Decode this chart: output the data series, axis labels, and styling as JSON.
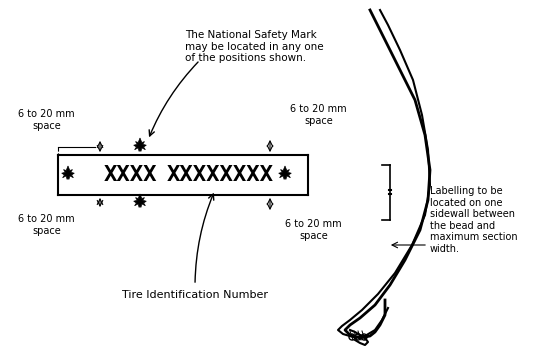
{
  "bg_color": "#ffffff",
  "text_color": "#000000",
  "line_color": "#000000",
  "title_text": "The National Safety Mark\nmay be located in any one\nof the positions shown.",
  "label_tin": "Tire Identification Number",
  "label_sidewall": "Labelling to be\nlocated on one\nsidewall between\nthe bead and\nmaximum section\nwidth.",
  "label_space_top_left": "6 to 20 mm\nspace",
  "label_space_top_right": "6 to 20 mm\nspace",
  "label_space_bot_left": "6 to 20 mm\nspace",
  "label_space_bot_right": "6 to 20 mm\nspace",
  "xxxx_text": "XXXX",
  "xxxxxxxx_text": "XXXXXXXX",
  "figsize": [
    5.47,
    3.55
  ],
  "dpi": 100
}
